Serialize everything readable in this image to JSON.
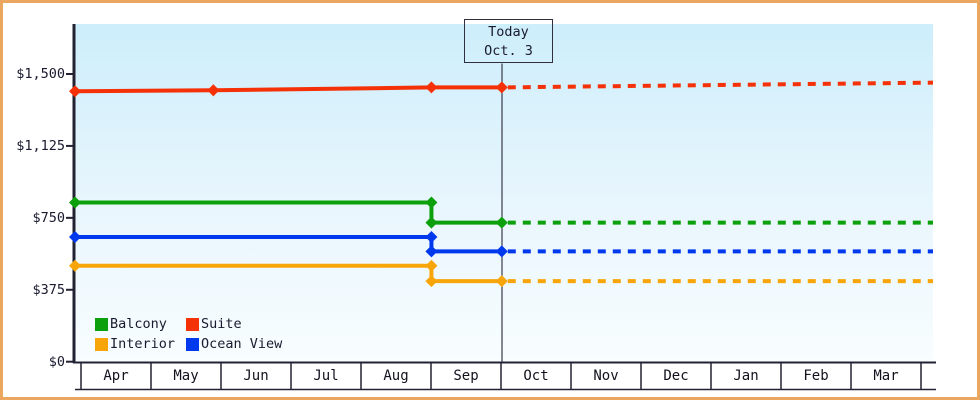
{
  "window": {
    "border_color": "#E9A75F"
  },
  "chart_data": {
    "type": "line",
    "title": "",
    "plot": {
      "bg_top": "#CDEEFB",
      "bg_bottom": "#F8FDFF",
      "axis_color": "#222233"
    },
    "y_axis": {
      "min": 0,
      "max": 1500,
      "ticks": [
        {
          "label": "$0",
          "value": 0
        },
        {
          "label": "$375",
          "value": 375
        },
        {
          "label": "$750",
          "value": 750
        },
        {
          "label": "$1,125",
          "value": 1125
        },
        {
          "label": "$1,500",
          "value": 1500
        }
      ]
    },
    "x_axis": {
      "months": [
        "Apr",
        "May",
        "Jun",
        "Jul",
        "Aug",
        "Sep",
        "Oct",
        "Nov",
        "Dec",
        "Jan",
        "Feb",
        "Mar"
      ]
    },
    "today": {
      "label_line1": "Today",
      "label_line2": "Oct. 3",
      "date": "Oct 3"
    },
    "series": [
      {
        "name": "Suite",
        "color": "#F53108",
        "history": [
          {
            "date": "Apr 1",
            "value": 1410
          },
          {
            "date": "May 30",
            "value": 1415
          },
          {
            "date": "Sep 3",
            "value": 1430
          },
          {
            "date": "Oct 3",
            "value": 1430
          }
        ],
        "forecast_end_value": 1455
      },
      {
        "name": "Balcony",
        "color": "#0CA00C",
        "history": [
          {
            "date": "Apr 1",
            "value": 830
          },
          {
            "date": "Sep 3",
            "value": 830
          },
          {
            "date": "Sep 3",
            "value": 725
          },
          {
            "date": "Oct 3",
            "value": 725
          }
        ],
        "forecast_end_value": 725
      },
      {
        "name": "Ocean View",
        "color": "#0038EE",
        "history": [
          {
            "date": "Apr 1",
            "value": 650
          },
          {
            "date": "Sep 3",
            "value": 650
          },
          {
            "date": "Sep 3",
            "value": 575
          },
          {
            "date": "Oct 3",
            "value": 575
          }
        ],
        "forecast_end_value": 575
      },
      {
        "name": "Interior",
        "color": "#F7A509",
        "history": [
          {
            "date": "Apr 1",
            "value": 500
          },
          {
            "date": "Sep 3",
            "value": 500
          },
          {
            "date": "Sep 3",
            "value": 420
          },
          {
            "date": "Oct 3",
            "value": 420
          }
        ],
        "forecast_end_value": 420
      }
    ],
    "legend": {
      "rows": [
        [
          {
            "name": "Balcony",
            "color": "#0CA00C"
          },
          {
            "name": "Suite",
            "color": "#F53108"
          }
        ],
        [
          {
            "name": "Interior",
            "color": "#F7A509"
          },
          {
            "name": "Ocean View",
            "color": "#0038EE"
          }
        ]
      ]
    }
  }
}
